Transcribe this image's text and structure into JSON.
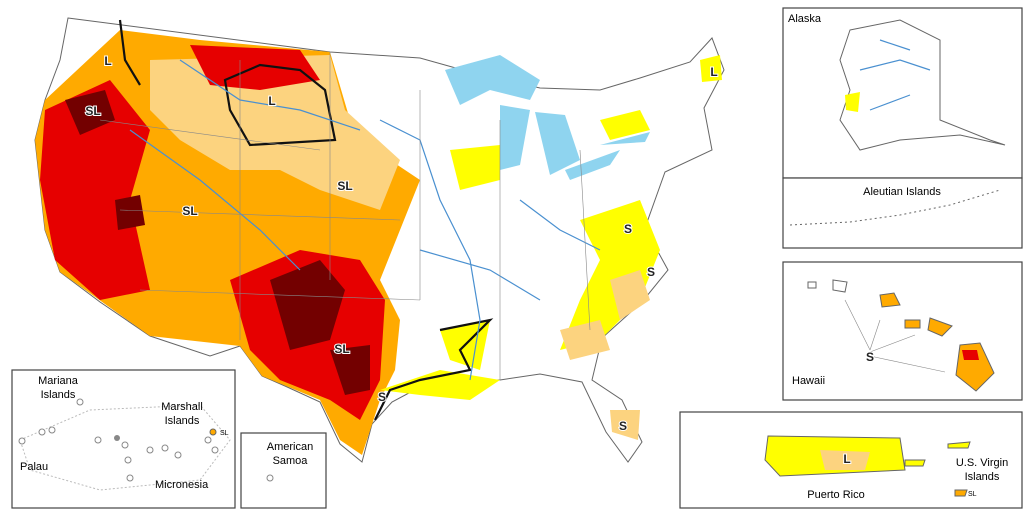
{
  "main_map": {
    "impact_labels": [
      "L",
      "L",
      "L",
      "SL",
      "SL",
      "SL",
      "SL",
      "S",
      "S",
      "S",
      "S"
    ]
  },
  "insets": {
    "alaska": "Alaska",
    "aleutian": "Aleutian Islands",
    "hawaii": {
      "title": "Hawaii",
      "label": "S"
    },
    "puerto_rico": {
      "title": "Puerto Rico",
      "label": "L"
    },
    "virgin_islands": {
      "title": [
        "U.S. Virgin",
        "Islands"
      ],
      "label": "SL"
    },
    "american_samoa": [
      "American",
      "Samoa"
    ],
    "pacific": {
      "mariana": [
        "Mariana",
        "Islands"
      ],
      "marshall": [
        "Marshall",
        "Islands"
      ],
      "marshall_label": "SL",
      "palau": "Palau",
      "micronesia": "Micronesia"
    }
  }
}
